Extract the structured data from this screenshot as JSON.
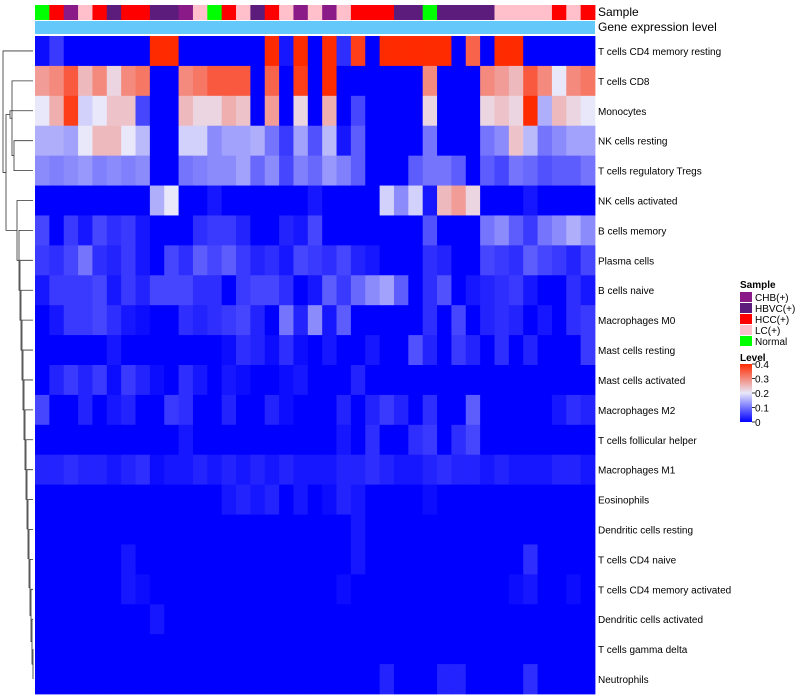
{
  "chart_data": {
    "type": "heatmap",
    "title": "",
    "annotation_tracks": [
      "Sample",
      "Gene expression level"
    ],
    "rows": [
      "T cells CD4 memory resting",
      "T cells CD8",
      "Monocytes",
      "NK cells resting",
      "T cells regulatory  Tregs",
      "NK cells activated",
      "B cells memory",
      "Plasma cells",
      "B cells naive",
      "Macrophages M0",
      "Mast cells resting",
      "Mast cells activated",
      "Macrophages M2",
      "T cells follicular helper",
      "Macrophages M1",
      "Eosinophils",
      "Dendritic cells resting",
      "T cells CD4 naive",
      "T cells CD4 memory activated",
      "Dendritic cells activated",
      "T cells gamma delta",
      "Neutrophils"
    ],
    "samples": [
      "Normal",
      "HCC(+)",
      "CHB(+)",
      "LC(+)",
      "HCC(+)",
      "HBVC(+)",
      "HCC(+)",
      "HCC(+)",
      "HBVC(+)",
      "HBVC(+)",
      "CHB(+)",
      "LC(+)",
      "Normal",
      "HCC(+)",
      "LC(+)",
      "HBVC(+)",
      "HCC(+)",
      "LC(+)",
      "CHB(+)",
      "LC(+)",
      "CHB(+)",
      "LC(+)",
      "HCC(+)",
      "HCC(+)",
      "HCC(+)",
      "HBVC(+)",
      "HBVC(+)",
      "Normal",
      "HBVC(+)",
      "HBVC(+)",
      "HBVC(+)",
      "HBVC(+)",
      "LC(+)",
      "LC(+)",
      "LC(+)",
      "LC(+)",
      "HCC(+)",
      "LC(+)",
      "HCC(+)"
    ],
    "values": [
      [
        0.01,
        0.05,
        0.0,
        0.0,
        0.0,
        0.0,
        0.0,
        0.0,
        0.4,
        0.4,
        0.0,
        0.0,
        0.0,
        0.0,
        0.0,
        0.0,
        0.4,
        0.02,
        0.4,
        0.0,
        0.4,
        0.04,
        0.38,
        0.0,
        0.4,
        0.4,
        0.4,
        0.4,
        0.4,
        0.0,
        0.34,
        0.0,
        0.4,
        0.4,
        0.0,
        0.0,
        0.0,
        0.0,
        0.0
      ],
      [
        0.28,
        0.3,
        0.35,
        0.25,
        0.3,
        0.22,
        0.3,
        0.32,
        0.0,
        0.0,
        0.3,
        0.32,
        0.35,
        0.35,
        0.35,
        0.0,
        0.34,
        0.0,
        0.38,
        0.0,
        0.4,
        0.0,
        0.0,
        0.0,
        0.0,
        0.0,
        0.0,
        0.3,
        0.0,
        0.0,
        0.0,
        0.3,
        0.28,
        0.25,
        0.35,
        0.3,
        0.2,
        0.3,
        0.32
      ],
      [
        0.2,
        0.26,
        0.38,
        0.18,
        0.2,
        0.24,
        0.24,
        0.06,
        0.0,
        0.0,
        0.25,
        0.22,
        0.22,
        0.26,
        0.24,
        0.0,
        0.28,
        0.0,
        0.22,
        0.0,
        0.26,
        0.0,
        0.06,
        0.0,
        0.0,
        0.0,
        0.0,
        0.22,
        0.0,
        0.0,
        0.0,
        0.22,
        0.24,
        0.22,
        0.4,
        0.15,
        0.25,
        0.22,
        0.2
      ],
      [
        0.15,
        0.15,
        0.14,
        0.2,
        0.25,
        0.25,
        0.2,
        0.16,
        0.0,
        0.0,
        0.18,
        0.18,
        0.12,
        0.14,
        0.14,
        0.15,
        0.1,
        0.05,
        0.14,
        0.07,
        0.16,
        0.02,
        0.08,
        0.0,
        0.0,
        0.0,
        0.0,
        0.1,
        0.0,
        0.0,
        0.0,
        0.1,
        0.12,
        0.24,
        0.16,
        0.1,
        0.12,
        0.14,
        0.14
      ],
      [
        0.12,
        0.11,
        0.12,
        0.13,
        0.11,
        0.12,
        0.11,
        0.12,
        0.0,
        0.0,
        0.1,
        0.11,
        0.12,
        0.12,
        0.14,
        0.09,
        0.12,
        0.06,
        0.11,
        0.09,
        0.13,
        0.11,
        0.08,
        0.0,
        0.0,
        0.0,
        0.08,
        0.1,
        0.1,
        0.08,
        0.0,
        0.08,
        0.06,
        0.1,
        0.09,
        0.07,
        0.08,
        0.08,
        0.1
      ],
      [
        0.0,
        0.0,
        0.0,
        0.0,
        0.0,
        0.0,
        0.0,
        0.0,
        0.15,
        0.2,
        0.0,
        0.0,
        0.02,
        0.0,
        0.0,
        0.0,
        0.0,
        0.0,
        0.0,
        0.02,
        0.0,
        0.0,
        0.0,
        0.0,
        0.18,
        0.12,
        0.18,
        0.02,
        0.25,
        0.28,
        0.22,
        0.0,
        0.0,
        0.0,
        0.02,
        0.0,
        0.0,
        0.0,
        0.0
      ],
      [
        0.06,
        0.0,
        0.05,
        0.02,
        0.06,
        0.04,
        0.05,
        0.02,
        0.0,
        0.0,
        0.0,
        0.04,
        0.05,
        0.05,
        0.03,
        0.0,
        0.0,
        0.03,
        0.02,
        0.06,
        0.0,
        0.0,
        0.0,
        0.0,
        0.0,
        0.0,
        0.0,
        0.07,
        0.0,
        0.0,
        0.0,
        0.1,
        0.12,
        0.08,
        0.05,
        0.1,
        0.12,
        0.15,
        0.12
      ],
      [
        0.05,
        0.04,
        0.06,
        0.1,
        0.04,
        0.03,
        0.05,
        0.02,
        0.0,
        0.06,
        0.04,
        0.08,
        0.06,
        0.08,
        0.05,
        0.03,
        0.04,
        0.02,
        0.06,
        0.05,
        0.04,
        0.06,
        0.03,
        0.02,
        0.0,
        0.0,
        0.0,
        0.04,
        0.03,
        0.0,
        0.0,
        0.06,
        0.05,
        0.04,
        0.08,
        0.06,
        0.05,
        0.03,
        0.06
      ],
      [
        0.02,
        0.05,
        0.05,
        0.05,
        0.06,
        0.02,
        0.05,
        0.03,
        0.06,
        0.06,
        0.06,
        0.04,
        0.04,
        0.0,
        0.05,
        0.06,
        0.06,
        0.04,
        0.0,
        0.02,
        0.08,
        0.05,
        0.09,
        0.12,
        0.14,
        0.08,
        0.0,
        0.04,
        0.07,
        0.0,
        0.02,
        0.03,
        0.04,
        0.05,
        0.02,
        0.0,
        0.0,
        0.04,
        0.02
      ],
      [
        0.0,
        0.02,
        0.05,
        0.05,
        0.06,
        0.04,
        0.02,
        0.01,
        0.0,
        0.0,
        0.04,
        0.03,
        0.04,
        0.05,
        0.06,
        0.03,
        0.0,
        0.1,
        0.03,
        0.12,
        0.02,
        0.08,
        0.0,
        0.0,
        0.0,
        0.0,
        0.0,
        0.04,
        0.0,
        0.06,
        0.0,
        0.03,
        0.04,
        0.03,
        0.0,
        0.02,
        0.0,
        0.04,
        0.05
      ],
      [
        0.0,
        0.0,
        0.0,
        0.0,
        0.0,
        0.02,
        0.0,
        0.0,
        0.0,
        0.0,
        0.0,
        0.0,
        0.0,
        0.01,
        0.04,
        0.03,
        0.01,
        0.04,
        0.01,
        0.0,
        0.02,
        0.0,
        0.0,
        0.02,
        0.0,
        0.0,
        0.07,
        0.03,
        0.0,
        0.05,
        0.03,
        0.0,
        0.04,
        0.0,
        0.03,
        0.0,
        0.0,
        0.0,
        0.05
      ],
      [
        0.0,
        0.03,
        0.05,
        0.03,
        0.05,
        0.01,
        0.05,
        0.03,
        0.01,
        0.0,
        0.04,
        0.02,
        0.0,
        0.02,
        0.01,
        0.0,
        0.0,
        0.01,
        0.02,
        0.0,
        0.0,
        0.0,
        0.03,
        0.0,
        0.0,
        0.0,
        0.0,
        0.0,
        0.0,
        0.0,
        0.0,
        0.0,
        0.0,
        0.0,
        0.0,
        0.0,
        0.0,
        0.0,
        0.0
      ],
      [
        0.06,
        0.0,
        0.0,
        0.03,
        0.0,
        0.02,
        0.03,
        0.0,
        0.0,
        0.05,
        0.04,
        0.0,
        0.0,
        0.03,
        0.0,
        0.0,
        0.03,
        0.01,
        0.0,
        0.0,
        0.0,
        0.03,
        0.0,
        0.03,
        0.05,
        0.03,
        0.0,
        0.04,
        0.0,
        0.0,
        0.08,
        0.0,
        0.0,
        0.0,
        0.0,
        0.0,
        0.02,
        0.04,
        0.03
      ],
      [
        0.0,
        0.0,
        0.0,
        0.0,
        0.0,
        0.0,
        0.0,
        0.0,
        0.0,
        0.0,
        0.02,
        0.0,
        0.0,
        0.0,
        0.0,
        0.0,
        0.0,
        0.0,
        0.0,
        0.0,
        0.0,
        0.02,
        0.0,
        0.04,
        0.0,
        0.0,
        0.04,
        0.05,
        0.0,
        0.04,
        0.06,
        0.0,
        0.0,
        0.0,
        0.0,
        0.0,
        0.0,
        0.0,
        0.0
      ],
      [
        0.03,
        0.03,
        0.04,
        0.03,
        0.03,
        0.02,
        0.03,
        0.04,
        0.01,
        0.02,
        0.02,
        0.03,
        0.02,
        0.03,
        0.02,
        0.03,
        0.02,
        0.03,
        0.02,
        0.02,
        0.02,
        0.03,
        0.03,
        0.04,
        0.03,
        0.02,
        0.02,
        0.03,
        0.04,
        0.03,
        0.03,
        0.02,
        0.03,
        0.02,
        0.02,
        0.02,
        0.03,
        0.03,
        0.02
      ],
      [
        0.0,
        0.0,
        0.0,
        0.0,
        0.0,
        0.0,
        0.0,
        0.0,
        0.0,
        0.0,
        0.0,
        0.0,
        0.0,
        0.02,
        0.03,
        0.02,
        0.03,
        0.0,
        0.02,
        0.0,
        0.01,
        0.03,
        0.02,
        0.0,
        0.0,
        0.0,
        0.0,
        0.01,
        0.0,
        0.0,
        0.0,
        0.0,
        0.0,
        0.0,
        0.0,
        0.0,
        0.0,
        0.0,
        0.0
      ],
      [
        0.0,
        0.0,
        0.0,
        0.0,
        0.0,
        0.0,
        0.0,
        0.0,
        0.0,
        0.0,
        0.0,
        0.0,
        0.0,
        0.0,
        0.0,
        0.0,
        0.0,
        0.0,
        0.0,
        0.0,
        0.0,
        0.0,
        0.02,
        0.0,
        0.0,
        0.0,
        0.0,
        0.0,
        0.0,
        0.0,
        0.0,
        0.0,
        0.0,
        0.0,
        0.0,
        0.0,
        0.0,
        0.0,
        0.0
      ],
      [
        0.0,
        0.0,
        0.0,
        0.0,
        0.0,
        0.0,
        0.02,
        0.0,
        0.0,
        0.0,
        0.0,
        0.0,
        0.0,
        0.0,
        0.0,
        0.0,
        0.0,
        0.0,
        0.0,
        0.0,
        0.0,
        0.0,
        0.02,
        0.0,
        0.0,
        0.0,
        0.0,
        0.0,
        0.0,
        0.0,
        0.0,
        0.0,
        0.0,
        0.0,
        0.04,
        0.0,
        0.0,
        0.0,
        0.0
      ],
      [
        0.0,
        0.0,
        0.0,
        0.0,
        0.0,
        0.0,
        0.02,
        0.01,
        0.0,
        0.0,
        0.0,
        0.0,
        0.0,
        0.0,
        0.0,
        0.0,
        0.0,
        0.0,
        0.0,
        0.0,
        0.0,
        0.01,
        0.0,
        0.0,
        0.0,
        0.0,
        0.0,
        0.0,
        0.0,
        0.0,
        0.0,
        0.0,
        0.0,
        0.01,
        0.02,
        0.0,
        0.0,
        0.01,
        0.0
      ],
      [
        0.0,
        0.0,
        0.0,
        0.0,
        0.0,
        0.0,
        0.0,
        0.0,
        0.02,
        0.0,
        0.0,
        0.0,
        0.0,
        0.0,
        0.0,
        0.0,
        0.0,
        0.0,
        0.0,
        0.0,
        0.0,
        0.0,
        0.0,
        0.0,
        0.0,
        0.0,
        0.0,
        0.0,
        0.0,
        0.0,
        0.0,
        0.0,
        0.0,
        0.0,
        0.0,
        0.0,
        0.0,
        0.0,
        0.0
      ],
      [
        0.0,
        0.0,
        0.0,
        0.0,
        0.0,
        0.0,
        0.0,
        0.0,
        0.0,
        0.0,
        0.0,
        0.0,
        0.0,
        0.0,
        0.0,
        0.0,
        0.0,
        0.0,
        0.0,
        0.0,
        0.0,
        0.0,
        0.0,
        0.0,
        0.0,
        0.0,
        0.0,
        0.0,
        0.0,
        0.0,
        0.0,
        0.0,
        0.0,
        0.0,
        0.0,
        0.0,
        0.0,
        0.0,
        0.0
      ],
      [
        0.0,
        0.0,
        0.0,
        0.0,
        0.0,
        0.0,
        0.0,
        0.0,
        0.0,
        0.0,
        0.0,
        0.0,
        0.0,
        0.0,
        0.0,
        0.0,
        0.0,
        0.0,
        0.0,
        0.0,
        0.0,
        0.0,
        0.0,
        0.0,
        0.03,
        0.0,
        0.0,
        0.0,
        0.03,
        0.03,
        0.0,
        0.0,
        0.0,
        0.0,
        0.04,
        0.0,
        0.0,
        0.0,
        0.0
      ]
    ],
    "legend": {
      "sample_title": "Sample",
      "sample_groups": [
        {
          "label": "CHB(+)",
          "color": "#8B1A89"
        },
        {
          "label": "HBVC(+)",
          "color": "#5C1C7C"
        },
        {
          "label": "HCC(+)",
          "color": "#FF0000"
        },
        {
          "label": "LC(+)",
          "color": "#FFC0CB"
        },
        {
          "label": "Normal",
          "color": "#00FF00"
        }
      ],
      "level_title": "Level",
      "level_ticks": [
        0.4,
        0.3,
        0.2,
        0.1,
        0
      ],
      "range": [
        0,
        0.4
      ]
    },
    "gene_expression_color": "#64C8FA",
    "color_scale": {
      "low": "#0000FF",
      "mid": "#E8E8FA",
      "high": "#FF2B00"
    }
  }
}
